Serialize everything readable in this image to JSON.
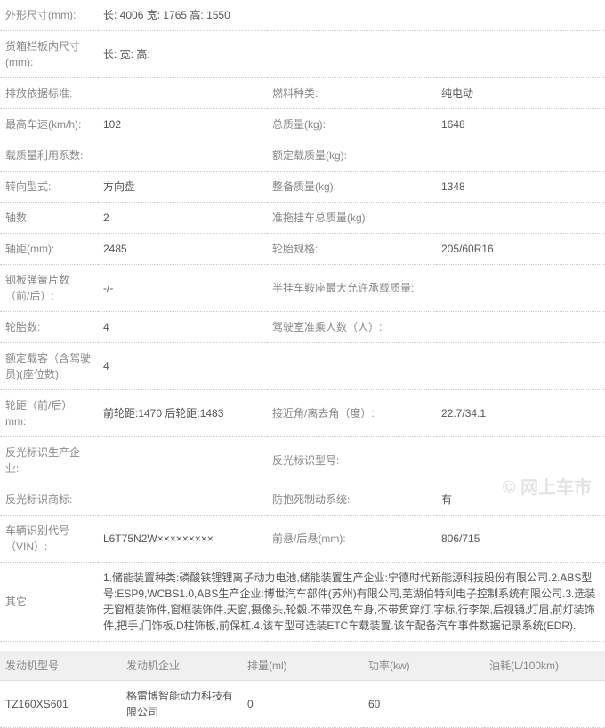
{
  "specs": {
    "dimensions_label": "外形尺寸(mm):",
    "dimensions_value": "长: 4006 宽: 1765 高: 1550",
    "cargo_label": "货箱栏板内尺寸(mm):",
    "cargo_value": "长: 宽: 高:",
    "emission_std_label": "排放依据标准:",
    "emission_std_value": "",
    "fuel_type_label": "燃料种类:",
    "fuel_type_value": "纯电动",
    "top_speed_label": "最高车速(km/h):",
    "top_speed_value": "102",
    "total_mass_label": "总质量(kg):",
    "total_mass_value": "1648",
    "load_coef_label": "载质量利用系数:",
    "load_coef_value": "",
    "rated_load_label": "额定载质量(kg):",
    "rated_load_value": "",
    "steering_label": "转向型式:",
    "steering_value": "方向盘",
    "curb_mass_label": "整备质量(kg):",
    "curb_mass_value": "1348",
    "axles_label": "轴数:",
    "axles_value": "2",
    "trailer_mass_label": "准拖挂车总质量(kg):",
    "trailer_mass_value": "",
    "wheelbase_label": "轴距(mm):",
    "wheelbase_value": "2485",
    "tire_spec_label": "轮胎规格:",
    "tire_spec_value": "205/60R16",
    "leaf_spring_label": "钢板弹簧片数（前/后）:",
    "leaf_spring_value": "-/-",
    "saddle_load_label": "半挂车鞍座最大允许承载质量:",
    "saddle_load_value": "",
    "tire_count_label": "轮胎数:",
    "tire_count_value": "4",
    "cab_seats_label": "驾驶室准乘人数（人）:",
    "cab_seats_value": "",
    "rated_passengers_label": "额定载客（含驾驶员)(座位数):",
    "rated_passengers_value": "4",
    "track_label": "轮距（前/后）mm:",
    "track_value": "前轮距:1470 后轮距:1483",
    "approach_angle_label": "接近角/离去角（度）:",
    "approach_angle_value": "22.7/34.1",
    "refl_mfr_label": "反光标识生产企业:",
    "refl_mfr_value": "",
    "refl_model_label": "反光标识型号:",
    "refl_model_value": "",
    "refl_brand_label": "反光标识商标:",
    "refl_brand_value": "",
    "abs_label": "防抱死制动系统:",
    "abs_value": "有",
    "vin_label": "车辆识别代号（VIN）:",
    "vin_value": "L6T75N2W×××××××××",
    "overhang_label": "前悬/后悬(mm):",
    "overhang_value": "806/715",
    "other_label": "其它:",
    "other_value": "1.储能装置种类:磷酸铁锂锂离子动力电池,储能装置生产企业:宁德时代新能源科技股份有限公司.2.ABS型号:ESP9,WCBS1.0,ABS生产企业:博世汽车部件(苏州)有限公司,芜湖伯特利电子控制系统有限公司.3.选装无窗框装饰件,窗框装饰件,天窗,摄像头,轮毂.不带双色车身,不带贯穿灯,字标,行李架,后视镜,灯眉,前灯装饰件,把手,门饰板,D柱饰板,前保杠.4.该车型可选装ETC车载装置.该车配备汽车事件数据记录系统(EDR)."
  },
  "engine": {
    "h_model": "发动机型号",
    "h_mfr": "发动机企业",
    "h_disp": "排量(ml)",
    "h_power": "功率(kw)",
    "h_fuel": "油耗(L/100km)",
    "model": "TZ160XS601",
    "mfr": "格雷博智能动力科技有限公司",
    "disp": "0",
    "power": "60",
    "fuel": ""
  },
  "watermark": "© 网上车市"
}
